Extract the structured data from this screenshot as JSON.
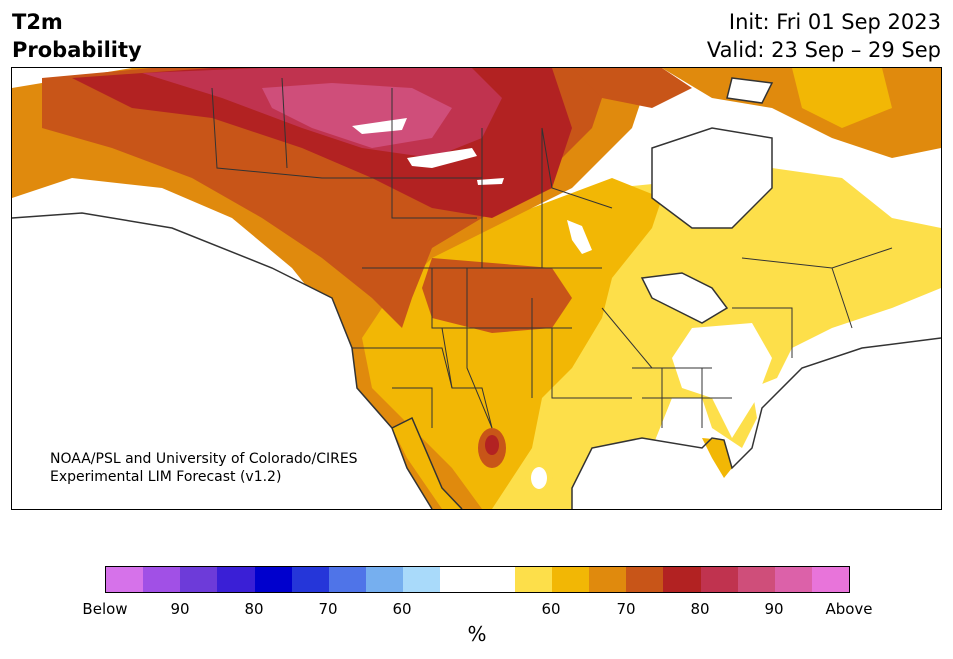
{
  "header": {
    "title_line1": "T2m",
    "title_line2": "Probability",
    "init": "Init: Fri 01 Sep 2023",
    "valid": "Valid: 23 Sep – 29 Sep"
  },
  "map": {
    "credit_line1": "NOAA/PSL and University of Colorado/CIRES",
    "credit_line2": "Experimental LIM Forecast (v1.2)"
  },
  "colorbar": {
    "colors": [
      "#d672ea",
      "#a150e6",
      "#6d3bd9",
      "#3a1fd6",
      "#0000cd",
      "#2536d9",
      "#4f74e8",
      "#76afef",
      "#a9dafa",
      "#ffffff",
      "#ffffff",
      "#fddf4a",
      "#f2b705",
      "#e08a0d",
      "#c85518",
      "#b22222",
      "#c0334f",
      "#cf4e7a",
      "#dc61a9",
      "#e874da"
    ],
    "ticks": [
      "Below",
      "90",
      "80",
      "70",
      "60",
      "60",
      "70",
      "80",
      "90",
      "Above"
    ],
    "unit": "%"
  }
}
